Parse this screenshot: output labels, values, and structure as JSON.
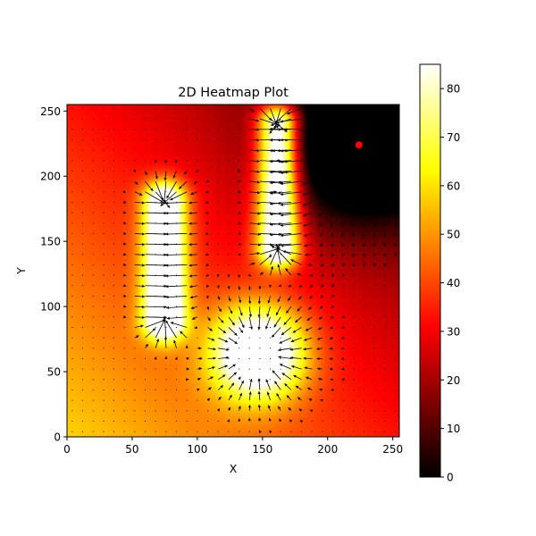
{
  "chart_data": {
    "type": "heatmap",
    "title": "2D Heatmap Plot",
    "xlabel": "X",
    "ylabel": "Y",
    "xlim": [
      0,
      255
    ],
    "ylim": [
      0,
      255
    ],
    "xticks": [
      0,
      50,
      100,
      150,
      200,
      250
    ],
    "yticks": [
      0,
      50,
      100,
      150,
      200,
      250
    ],
    "colormap": "hot",
    "colorbar": {
      "range": [
        0,
        85
      ],
      "ticks": [
        0,
        10,
        20,
        30,
        40,
        50,
        60,
        70,
        80
      ]
    },
    "overlay": "gradient quiver field",
    "features": [
      {
        "shape": "vertical-bar",
        "x": 75,
        "y_range": [
          90,
          180
        ],
        "peak": 85
      },
      {
        "shape": "vertical-bar",
        "x": 162,
        "y_range": [
          145,
          240
        ],
        "peak": 85
      },
      {
        "shape": "disk",
        "x": 147,
        "y": 65,
        "peak": 85
      },
      {
        "shape": "minimum",
        "x": 224,
        "y": 224,
        "value": 0
      }
    ],
    "marker": {
      "x": 224,
      "y": 224,
      "color": "#ff0000"
    }
  }
}
